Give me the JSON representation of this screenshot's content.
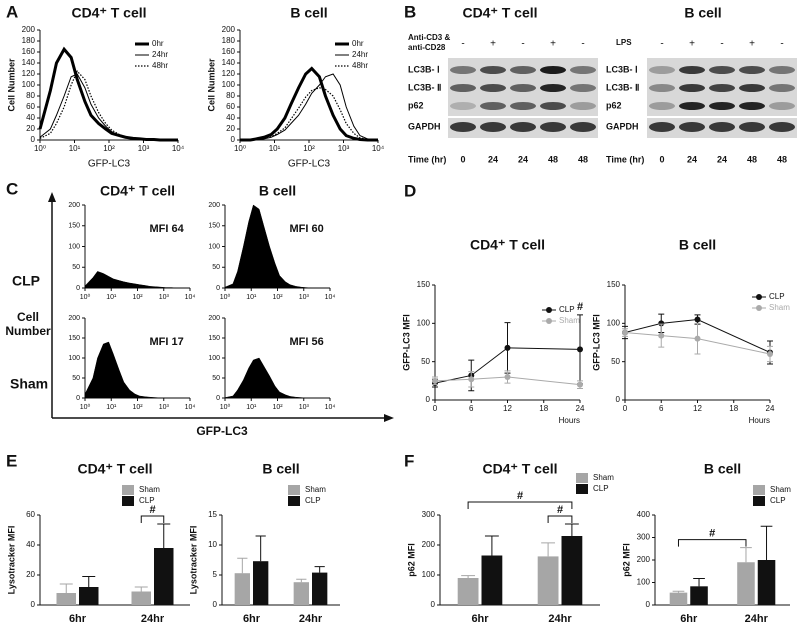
{
  "panel_labels": [
    "A",
    "B",
    "C",
    "D",
    "E",
    "F"
  ],
  "western_blot": [
    {
      "title": "CD4⁺ T cell",
      "treatment": "Anti-CD3 & anti-CD28",
      "signs": [
        "-",
        "+",
        "-",
        "+",
        "-"
      ],
      "bands": [
        "LC3B- Ⅰ",
        "LC3B- Ⅱ",
        "p62",
        "GAPDH"
      ],
      "time_label": "Time (hr)",
      "times": [
        0,
        24,
        24,
        48,
        48
      ]
    },
    {
      "title": "B cell",
      "treatment": "LPS",
      "signs": [
        "-",
        "+",
        "-",
        "+",
        "-"
      ],
      "bands": [
        "LC3B- Ⅰ",
        "LC3B- Ⅱ",
        "p62",
        "GAPDH"
      ],
      "time_label": "Time (hr)",
      "times": [
        0,
        24,
        24,
        48,
        48
      ]
    }
  ],
  "panel_c": {
    "row_labels": [
      "CLP",
      "Sham"
    ],
    "y_label": "Cell Number",
    "x_label": "GFP-LC3"
  },
  "chart_data": [
    {
      "type": "line",
      "title": "CD4⁺ T cell",
      "xlabel": "GFP-LC3",
      "ylabel": "Cell Number",
      "xscale": "log",
      "xlim": [
        1,
        10000
      ],
      "xticks": [
        {
          "value": 1,
          "label": "10⁰"
        },
        {
          "value": 10,
          "label": "10¹"
        },
        {
          "value": 100,
          "label": "10²"
        },
        {
          "value": 1000,
          "label": "10³"
        },
        {
          "value": 10000,
          "label": "10⁴"
        }
      ],
      "ylim": [
        0,
        200
      ],
      "yticks": [
        0,
        20,
        40,
        60,
        80,
        100,
        120,
        140,
        160,
        180,
        200
      ],
      "legend": "upper right",
      "x": [
        1,
        2,
        3,
        5,
        8,
        12,
        20,
        30,
        50,
        80,
        120,
        200,
        300,
        500,
        800,
        1200,
        2000,
        3000,
        5000,
        10000
      ],
      "series": [
        {
          "name": "0hr",
          "color": "#000000",
          "line_style": "thick",
          "values": [
            20,
            90,
            140,
            165,
            150,
            110,
            70,
            45,
            30,
            20,
            12,
            8,
            5,
            3,
            2,
            1,
            1,
            0,
            0,
            0
          ]
        },
        {
          "name": "24hr",
          "color": "#000000",
          "line_style": "thin",
          "values": [
            5,
            20,
            45,
            80,
            115,
            120,
            95,
            65,
            40,
            25,
            15,
            8,
            5,
            3,
            2,
            1,
            0,
            0,
            0,
            0
          ]
        },
        {
          "name": "48hr",
          "color": "#000000",
          "line_style": "dotted",
          "values": [
            3,
            12,
            30,
            60,
            100,
            125,
            110,
            80,
            50,
            30,
            18,
            10,
            5,
            3,
            2,
            1,
            0,
            0,
            0,
            0
          ]
        }
      ]
    },
    {
      "type": "line",
      "title": "B cell",
      "xlabel": "GFP-LC3",
      "ylabel": "Cell Number",
      "xscale": "log",
      "xlim": [
        1,
        10000
      ],
      "xticks": [
        {
          "value": 1,
          "label": "10⁰"
        },
        {
          "value": 10,
          "label": "10¹"
        },
        {
          "value": 100,
          "label": "10²"
        },
        {
          "value": 1000,
          "label": "10³"
        },
        {
          "value": 10000,
          "label": "10⁴"
        }
      ],
      "ylim": [
        0,
        200
      ],
      "yticks": [
        0,
        20,
        40,
        60,
        80,
        100,
        120,
        140,
        160,
        180,
        200
      ],
      "legend": "upper right",
      "x": [
        1,
        2,
        3,
        5,
        8,
        12,
        20,
        30,
        50,
        80,
        120,
        200,
        300,
        500,
        800,
        1200,
        2000,
        3000,
        5000,
        10000
      ],
      "series": [
        {
          "name": "0hr",
          "color": "#000000",
          "line_style": "thick",
          "values": [
            0,
            0,
            2,
            5,
            10,
            20,
            40,
            65,
            95,
            120,
            130,
            115,
            80,
            45,
            20,
            8,
            3,
            1,
            0,
            0
          ]
        },
        {
          "name": "24hr",
          "color": "#000000",
          "line_style": "thin",
          "values": [
            0,
            0,
            0,
            2,
            5,
            10,
            18,
            30,
            45,
            65,
            85,
            100,
            115,
            120,
            100,
            60,
            25,
            8,
            2,
            0
          ]
        },
        {
          "name": "48hr",
          "color": "#000000",
          "line_style": "dotted",
          "values": [
            0,
            0,
            1,
            3,
            6,
            12,
            22,
            38,
            58,
            78,
            90,
            95,
            92,
            80,
            55,
            30,
            12,
            4,
            1,
            0
          ]
        }
      ]
    },
    {
      "type": "area",
      "title": "CD4⁺ T cell",
      "annotation": "MFI 64",
      "xscale": "log",
      "xlim": [
        1,
        10000
      ],
      "xticks": [
        {
          "value": 1,
          "label": "10⁰"
        },
        {
          "value": 10,
          "label": "10¹"
        },
        {
          "value": 100,
          "label": "10²"
        },
        {
          "value": 1000,
          "label": "10³"
        },
        {
          "value": 10000,
          "label": "10⁴"
        }
      ],
      "ylim": [
        0,
        200
      ],
      "yticks": [
        0,
        50,
        100,
        150,
        200
      ],
      "x": [
        1,
        2,
        3,
        5,
        8,
        12,
        20,
        30,
        50,
        80,
        120,
        200,
        300,
        500,
        800,
        1200,
        2000,
        3000,
        5000,
        10000
      ],
      "series": [
        {
          "color": "#000000",
          "values": [
            5,
            25,
            40,
            35,
            28,
            22,
            18,
            15,
            12,
            10,
            8,
            6,
            4,
            3,
            2,
            1,
            1,
            0,
            0,
            0
          ]
        }
      ]
    },
    {
      "type": "area",
      "title": "B cell",
      "annotation": "MFI 60",
      "xscale": "log",
      "xlim": [
        1,
        10000
      ],
      "xticks": [
        {
          "value": 1,
          "label": "10⁰"
        },
        {
          "value": 10,
          "label": "10¹"
        },
        {
          "value": 100,
          "label": "10²"
        },
        {
          "value": 1000,
          "label": "10³"
        },
        {
          "value": 10000,
          "label": "10⁴"
        }
      ],
      "ylim": [
        0,
        200
      ],
      "yticks": [
        0,
        50,
        100,
        150,
        200
      ],
      "x": [
        1,
        2,
        3,
        5,
        8,
        12,
        20,
        30,
        50,
        80,
        120,
        200,
        300,
        500,
        800,
        1200,
        2000,
        3000,
        5000,
        10000
      ],
      "series": [
        {
          "color": "#000000",
          "values": [
            2,
            10,
            40,
            100,
            160,
            200,
            190,
            150,
            100,
            60,
            30,
            15,
            8,
            4,
            2,
            1,
            0,
            0,
            0,
            0
          ]
        }
      ]
    },
    {
      "type": "area",
      "annotation": "MFI 17",
      "xscale": "log",
      "xlim": [
        1,
        10000
      ],
      "xticks": [
        {
          "value": 1,
          "label": "10⁰"
        },
        {
          "value": 10,
          "label": "10¹"
        },
        {
          "value": 100,
          "label": "10²"
        },
        {
          "value": 1000,
          "label": "10³"
        },
        {
          "value": 10000,
          "label": "10⁴"
        }
      ],
      "ylim": [
        0,
        200
      ],
      "yticks": [
        0,
        50,
        100,
        150,
        200
      ],
      "x": [
        1,
        2,
        3,
        5,
        8,
        12,
        20,
        30,
        50,
        80,
        120,
        200,
        300,
        500,
        800,
        1200,
        2000,
        3000,
        5000,
        10000
      ],
      "series": [
        {
          "color": "#000000",
          "values": [
            10,
            50,
            100,
            135,
            140,
            110,
            70,
            40,
            20,
            10,
            5,
            3,
            2,
            1,
            0,
            0,
            0,
            0,
            0,
            0
          ]
        }
      ]
    },
    {
      "type": "area",
      "annotation": "MFI 56",
      "xscale": "log",
      "xlim": [
        1,
        10000
      ],
      "xticks": [
        {
          "value": 1,
          "label": "10⁰"
        },
        {
          "value": 10,
          "label": "10¹"
        },
        {
          "value": 100,
          "label": "10²"
        },
        {
          "value": 1000,
          "label": "10³"
        },
        {
          "value": 10000,
          "label": "10⁴"
        }
      ],
      "ylim": [
        0,
        200
      ],
      "yticks": [
        0,
        50,
        100,
        150,
        200
      ],
      "x": [
        1,
        2,
        3,
        5,
        8,
        12,
        20,
        30,
        50,
        80,
        120,
        200,
        300,
        500,
        800,
        1200,
        2000,
        3000,
        5000,
        10000
      ],
      "series": [
        {
          "color": "#000000",
          "values": [
            1,
            5,
            20,
            45,
            75,
            95,
            100,
            80,
            55,
            30,
            15,
            8,
            4,
            2,
            1,
            0,
            0,
            0,
            0,
            0
          ]
        }
      ]
    },
    {
      "type": "line",
      "title": "CD4⁺ T cell",
      "xlabel": "Hours",
      "ylabel": "GFP-LC3 MFI",
      "markers": true,
      "legend": "upper right",
      "xlim": [
        0,
        24
      ],
      "xticks": [
        0,
        6,
        12,
        18,
        24
      ],
      "ylim": [
        0,
        150
      ],
      "yticks": [
        0,
        50,
        100,
        150
      ],
      "x": [
        0,
        6,
        12,
        24
      ],
      "series": [
        {
          "name": "CLP",
          "color": "#111111",
          "values": [
            22,
            32,
            68,
            66
          ],
          "errors": [
            5,
            20,
            33,
            45
          ]
        },
        {
          "name": "Sham",
          "color": "#aaaaaa",
          "values": [
            25,
            27,
            30,
            20
          ],
          "errors": [
            5,
            10,
            8,
            5
          ]
        }
      ],
      "annotations": [
        {
          "text": "#",
          "x": 24
        }
      ]
    },
    {
      "type": "line",
      "title": "B cell",
      "xlabel": "Hours",
      "ylabel": "GFP-LC3 MFI",
      "markers": true,
      "legend": "upper right",
      "xlim": [
        0,
        24
      ],
      "xticks": [
        0,
        6,
        12,
        18,
        24
      ],
      "ylim": [
        0,
        150
      ],
      "yticks": [
        0,
        50,
        100,
        150
      ],
      "x": [
        0,
        6,
        12,
        24
      ],
      "series": [
        {
          "name": "CLP",
          "color": "#111111",
          "values": [
            88,
            100,
            105,
            62
          ],
          "errors": [
            8,
            12,
            6,
            15
          ]
        },
        {
          "name": "Sham",
          "color": "#aaaaaa",
          "values": [
            88,
            84,
            80,
            60
          ],
          "errors": [
            5,
            15,
            20,
            10
          ]
        }
      ]
    },
    {
      "type": "bar",
      "title": "CD4⁺ T cell",
      "ylabel": "Lysotracker MFI",
      "legend": "upper center",
      "categories": [
        "6hr",
        "24hr"
      ],
      "ylim": [
        0,
        60
      ],
      "yticks": [
        0,
        20,
        40,
        60
      ],
      "series": [
        {
          "name": "Sham",
          "color": "#a6a6a6",
          "values": [
            8,
            9
          ],
          "errors": [
            6,
            3
          ]
        },
        {
          "name": "CLP",
          "color": "#111111",
          "values": [
            12,
            38
          ],
          "errors": [
            7,
            16
          ]
        }
      ],
      "brackets": [
        {
          "text": "#",
          "from": [
            "24hr",
            "Sham"
          ],
          "to": [
            "24hr",
            "CLP"
          ]
        }
      ]
    },
    {
      "type": "bar",
      "title": "B cell",
      "ylabel": "Lysotracker MFI",
      "legend": "upper right",
      "categories": [
        "6hr",
        "24hr"
      ],
      "ylim": [
        0,
        15
      ],
      "yticks": [
        0,
        5,
        10,
        15
      ],
      "series": [
        {
          "name": "Sham",
          "color": "#a6a6a6",
          "values": [
            5.3,
            3.8
          ],
          "errors": [
            2.5,
            0.5
          ]
        },
        {
          "name": "CLP",
          "color": "#111111",
          "values": [
            7.3,
            5.4
          ],
          "errors": [
            4.2,
            1.0
          ]
        }
      ]
    },
    {
      "type": "bar",
      "title": "CD4⁺ T cell",
      "ylabel": "p62 MFI",
      "legend": "upper right",
      "categories": [
        "6hr",
        "24hr"
      ],
      "ylim": [
        0,
        300
      ],
      "yticks": [
        0,
        100,
        200,
        300
      ],
      "series": [
        {
          "name": "Sham",
          "color": "#a6a6a6",
          "values": [
            90,
            162
          ],
          "errors": [
            8,
            45
          ]
        },
        {
          "name": "CLP",
          "color": "#111111",
          "values": [
            165,
            230
          ],
          "errors": [
            65,
            40
          ]
        }
      ],
      "brackets": [
        {
          "text": "#",
          "from": [
            "6hr",
            "Sham"
          ],
          "to": [
            "24hr",
            "CLP"
          ]
        },
        {
          "text": "#",
          "from": [
            "24hr",
            "Sham"
          ],
          "to": [
            "24hr",
            "CLP"
          ]
        }
      ]
    },
    {
      "type": "bar",
      "title": "B cell",
      "ylabel": "p62 MFI",
      "legend": "upper right",
      "categories": [
        "6hr",
        "24hr"
      ],
      "ylim": [
        0,
        400
      ],
      "yticks": [
        0,
        100,
        200,
        300,
        400
      ],
      "series": [
        {
          "name": "Sham",
          "color": "#a6a6a6",
          "values": [
            55,
            190
          ],
          "errors": [
            6,
            65
          ]
        },
        {
          "name": "CLP",
          "color": "#111111",
          "values": [
            83,
            200
          ],
          "errors": [
            35,
            150
          ]
        }
      ],
      "brackets": [
        {
          "text": "#",
          "from": [
            "6hr",
            "Sham"
          ],
          "to": [
            "24hr",
            "Sham"
          ]
        }
      ]
    }
  ]
}
